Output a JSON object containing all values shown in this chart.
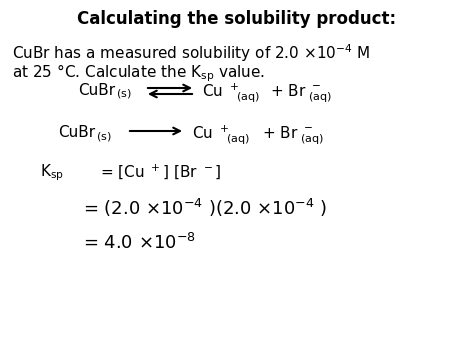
{
  "title": "Calculating the solubility product:",
  "background": "#ffffff",
  "figsize": [
    4.74,
    3.55
  ],
  "dpi": 100,
  "font_family": "DejaVu Sans",
  "title_fs": 12,
  "body_fs": 11,
  "eq_fs": 11,
  "sub_fs": 8,
  "big_eq_fs": 13
}
